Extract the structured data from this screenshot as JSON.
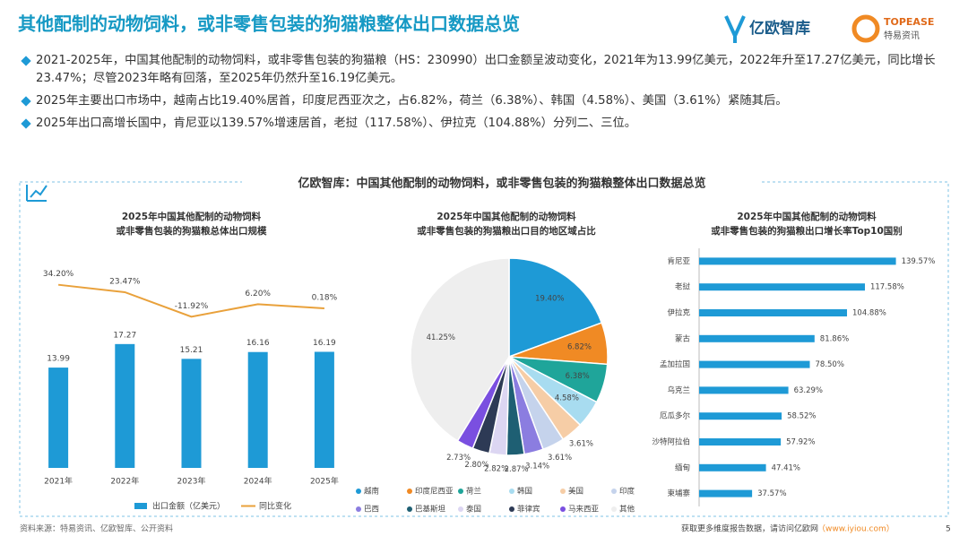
{
  "header": {
    "title": "其他配制的动物饲料，或非零售包装的狗猫粮整体出口数据总览",
    "logos": [
      "亿欧智库",
      "TOPEASE",
      "特易资讯"
    ]
  },
  "bullets": [
    "2021-2025年，中国其他配制的动物饲料，或非零售包装的狗猫粮（HS：230990）出口金额呈波动变化，2021年为13.99亿美元，2022年升至17.27亿美元，同比增长23.47%；尽管2023年略有回落，至2025年仍然升至16.19亿美元。",
    "2025年主要出口市场中，越南占比19.40%居首，印度尼西亚次之，占6.82%，荷兰（6.38%）、韩国（4.58%）、美国（3.61%）紧随其后。",
    "2025年出口高增长国中，肯尼亚以139.57%增速居首，老挝（117.58%）、伊拉克（104.88%）分列二、三位。"
  ],
  "panel_title": "亿欧智库：中国其他配制的动物饲料，或非零售包装的狗猫粮整体出口数据总览",
  "chart_data": [
    {
      "type": "bar",
      "title": [
        "2025年中国其他配制的动物饲料",
        "或非零售包装的狗猫粮总体出口规模"
      ],
      "categories": [
        "2021年",
        "2022年",
        "2023年",
        "2024年",
        "2025年"
      ],
      "series": [
        {
          "name": "出口金额（亿美元）",
          "color": "#1e9ad6",
          "values": [
            13.99,
            17.27,
            15.21,
            16.16,
            16.19
          ]
        },
        {
          "name": "同比变化",
          "type": "line",
          "axis": "y2",
          "color": "#e9a13b",
          "values": [
            34.2,
            23.47,
            -11.92,
            6.2,
            0.18
          ],
          "value_labels": [
            "34.20%",
            "23.47%",
            "-11.92%",
            "6.20%",
            "0.18%"
          ]
        }
      ],
      "ylim": [
        0,
        29
      ],
      "y2lim": [
        -230,
        70
      ],
      "legend": "bottom"
    },
    {
      "type": "pie",
      "title": [
        "2025年中国其他配制的动物饲料",
        "或非零售包装的狗猫粮出口目的地区域占比"
      ],
      "categories": [
        "越南",
        "印度尼西亚",
        "荷兰",
        "韩国",
        "美国",
        "印度",
        "巴西",
        "巴基斯坦",
        "泰国",
        "菲律宾",
        "马来西亚",
        "其他"
      ],
      "values": [
        19.4,
        6.82,
        6.38,
        4.58,
        3.61,
        3.61,
        3.14,
        2.87,
        2.82,
        2.8,
        2.73,
        41.25
      ],
      "value_labels": [
        "19.40%",
        "6.82%",
        "6.38%",
        "4.58%",
        "3.61%",
        "3.61%",
        "3.14%",
        "2.87%",
        "2.82%",
        "2.80%",
        "2.73%",
        "41.25%"
      ],
      "colors": [
        "#1e9ad6",
        "#f08a24",
        "#1fa59a",
        "#a8dcf0",
        "#f6cda6",
        "#c5d3ec",
        "#8b7de0",
        "#1e5f73",
        "#dcd6f2",
        "#2d3a55",
        "#7a4fe0",
        "#eeeeee"
      ],
      "legend": "bottom"
    },
    {
      "type": "barh",
      "title": [
        "2025年中国其他配制的动物饲料",
        "或非零售包装的狗猫粮出口增长率Top10国别"
      ],
      "categories": [
        "肯尼亚",
        "老挝",
        "伊拉克",
        "蒙古",
        "孟加拉国",
        "乌克兰",
        "厄瓜多尔",
        "沙特阿拉伯",
        "缅甸",
        "柬埔寨"
      ],
      "values": [
        139.57,
        117.58,
        104.88,
        81.86,
        78.5,
        63.29,
        58.52,
        57.92,
        47.41,
        37.57
      ],
      "value_labels": [
        "139.57%",
        "117.58%",
        "104.88%",
        "81.86%",
        "78.50%",
        "63.29%",
        "58.52%",
        "57.92%",
        "47.41%",
        "37.57%"
      ],
      "color": "#1e9ad6",
      "xlim": [
        0,
        150
      ]
    }
  ],
  "footer": {
    "source": "资料来源：特易资讯、亿欧智库、公开资料",
    "more": "获取更多维度报告数据，请访问亿欧网",
    "url": "（www.iyiou.com）",
    "page": 5
  }
}
